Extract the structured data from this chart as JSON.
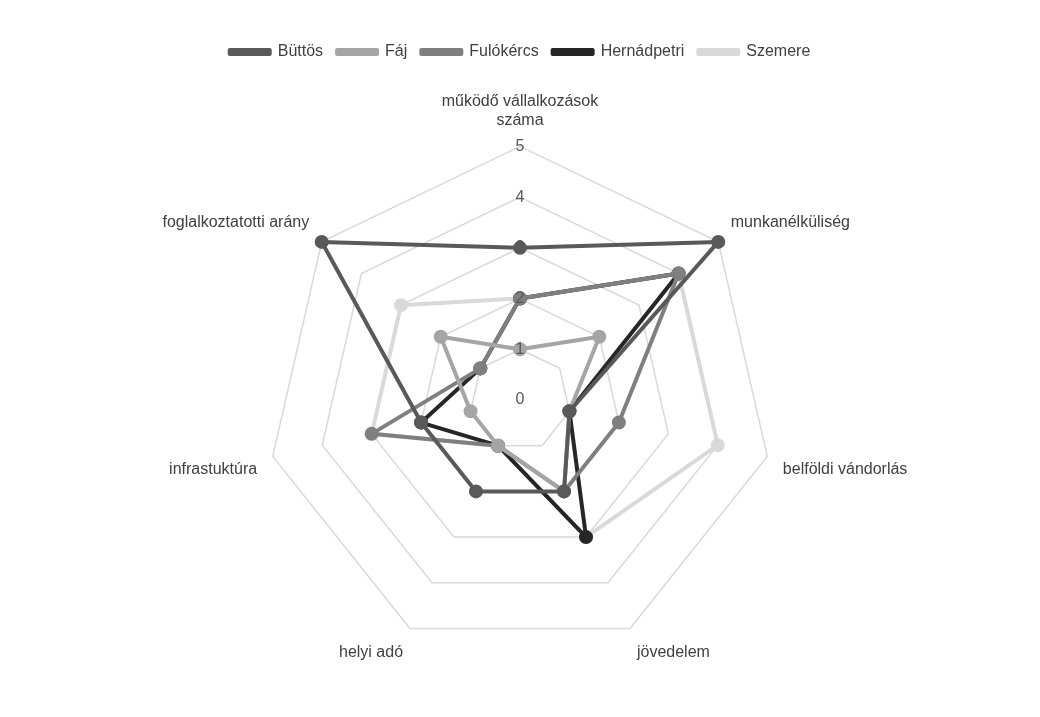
{
  "chart_data": {
    "type": "radar",
    "categories": [
      "működő vállalkozások száma",
      "munkanélküliség",
      "belföldi vándorlás",
      "jövedelem",
      "helyi adó",
      "infrastuktúra",
      "foglalkoztatotti arány"
    ],
    "series": [
      {
        "name": "Büttös",
        "color": "#595959",
        "values": [
          3,
          5,
          1,
          2,
          2,
          2,
          5
        ]
      },
      {
        "name": "Fáj",
        "color": "#a5a5a5",
        "values": [
          1,
          2,
          1,
          2,
          1,
          1,
          2
        ]
      },
      {
        "name": "Fulókércs",
        "color": "#7f7f7f",
        "values": [
          2,
          4,
          2,
          2,
          1,
          3,
          1
        ]
      },
      {
        "name": "Hernádpetri",
        "color": "#262626",
        "values": [
          2,
          4,
          1,
          3,
          1,
          2,
          1
        ]
      },
      {
        "name": "Szemere",
        "color": "#d9d9d9",
        "values": [
          2,
          4,
          4,
          3,
          1,
          3,
          3
        ]
      }
    ],
    "ylim": [
      0,
      5
    ],
    "yticks": [
      0,
      1,
      2,
      3,
      4,
      5
    ],
    "grid": true,
    "legend": "top",
    "marker": "circle",
    "line_style": "solid"
  }
}
